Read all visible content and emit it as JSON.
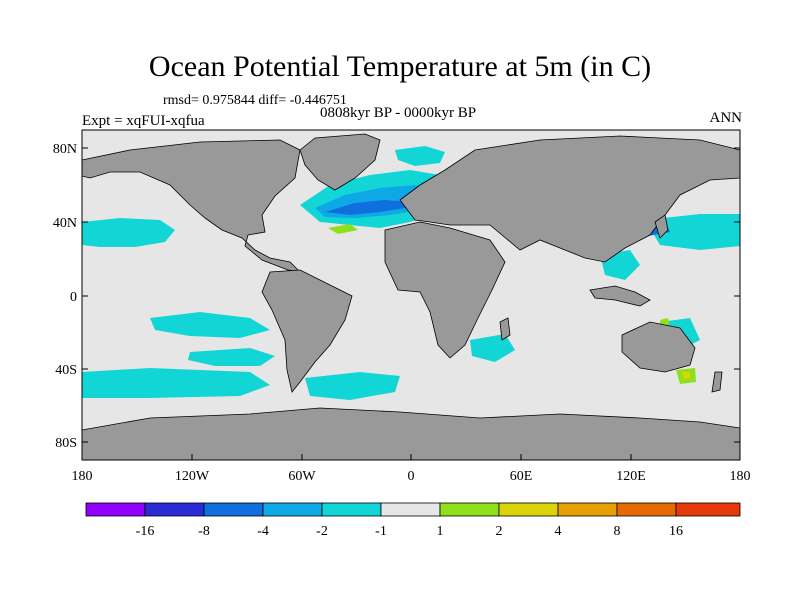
{
  "title": "Ocean Potential Temperature at 5m (in C)",
  "stats": "rmsd= 0.975844 diff= -0.446751",
  "period": "0808kyr BP - 0000kyr BP",
  "experiment": "Expt = xqFUI-xqfua",
  "season": "ANN",
  "map": {
    "lat_labels": [
      "80N",
      "40N",
      "0",
      "40S",
      "80S"
    ],
    "lon_labels": [
      "180",
      "120W",
      "60W",
      "0",
      "60E",
      "120E",
      "180"
    ],
    "colors": {
      "ocean": "#e6e6e6",
      "land": "#999999",
      "coast": "#000000"
    }
  },
  "colorbar": {
    "colors": [
      "#8f00ff",
      "#2b2bd6",
      "#0f6fdc",
      "#0fa8e6",
      "#12d6d6",
      "#e6e6e6",
      "#8fdf1a",
      "#dcd40a",
      "#e6a000",
      "#e66a00",
      "#e63a0a"
    ],
    "labels": [
      "-16",
      "-8",
      "-4",
      "-2",
      "-1",
      "1",
      "2",
      "4",
      "8",
      "16"
    ]
  },
  "anomaly_colors": {
    "cool_strong": "#0f6fdc",
    "cool_mid": "#0fa8e6",
    "cool_weak": "#12d6d6",
    "warm_weak": "#8fdf1a",
    "warm_mid": "#dcd40a"
  }
}
